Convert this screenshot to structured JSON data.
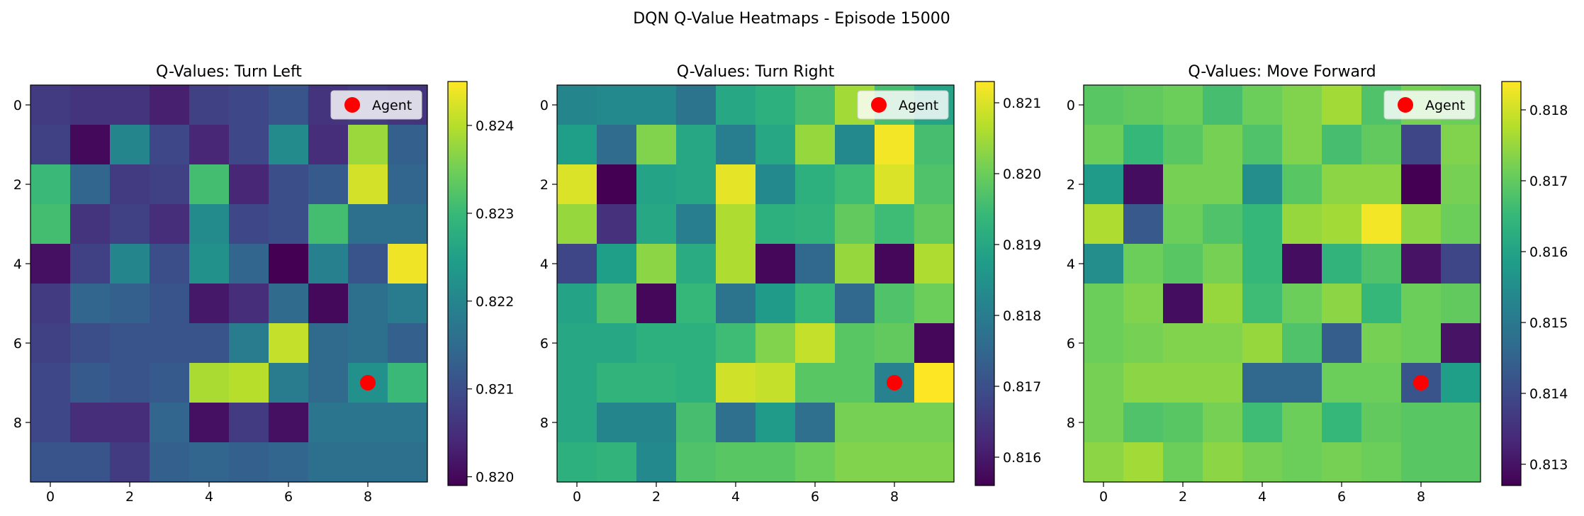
{
  "suptitle": "DQN Q-Value Heatmaps - Episode 15000",
  "colors": {
    "agent_marker": "#ff0000",
    "colormap": "viridis",
    "colormap_stops": [
      "#440154",
      "#482878",
      "#3e4989",
      "#31688e",
      "#26828e",
      "#1f9e89",
      "#35b779",
      "#6ece58",
      "#b5de2b",
      "#fde725"
    ]
  },
  "chart_data": [
    {
      "type": "heatmap",
      "title": "Q-Values: Turn Left",
      "x_ticks": [
        "0",
        "2",
        "4",
        "6",
        "8"
      ],
      "y_ticks": [
        "0",
        "2",
        "4",
        "6",
        "8"
      ],
      "xlim": [
        -0.5,
        9.5
      ],
      "ylim": [
        9.5,
        -0.5
      ],
      "legend": {
        "label": "Agent",
        "placement": "top-right"
      },
      "agent": {
        "x": 8,
        "y": 7
      },
      "colorbar": {
        "min": 0.8199,
        "max": 0.8245,
        "ticks": [
          "0.820",
          "0.821",
          "0.822",
          "0.823",
          "0.824"
        ],
        "tick_values": [
          0.82,
          0.821,
          0.822,
          0.823,
          0.824
        ]
      },
      "values": [
        [
          0.8207,
          0.8206,
          0.8206,
          0.8203,
          0.8208,
          0.8209,
          0.8211,
          0.8206,
          0.8207,
          0.8206
        ],
        [
          0.8208,
          0.82,
          0.822,
          0.8209,
          0.8204,
          0.8209,
          0.8221,
          0.8205,
          0.8238,
          0.8213
        ],
        [
          0.823,
          0.8214,
          0.8207,
          0.8208,
          0.8231,
          0.8204,
          0.821,
          0.8212,
          0.8242,
          0.8214
        ],
        [
          0.8231,
          0.8206,
          0.8208,
          0.8205,
          0.8221,
          0.8209,
          0.821,
          0.8231,
          0.8216,
          0.8216
        ],
        [
          0.8201,
          0.8208,
          0.822,
          0.821,
          0.8222,
          0.8214,
          0.8199,
          0.8219,
          0.8211,
          0.8244
        ],
        [
          0.8207,
          0.8214,
          0.8213,
          0.8211,
          0.8202,
          0.8205,
          0.8215,
          0.82,
          0.8216,
          0.8218
        ],
        [
          0.8208,
          0.821,
          0.8211,
          0.8211,
          0.8211,
          0.8218,
          0.8241,
          0.8215,
          0.8216,
          0.8213
        ],
        [
          0.8209,
          0.8212,
          0.8211,
          0.8212,
          0.8239,
          0.824,
          0.8218,
          0.8215,
          0.8222,
          0.823
        ],
        [
          0.8209,
          0.8205,
          0.8205,
          0.8214,
          0.8201,
          0.8207,
          0.8201,
          0.8217,
          0.8217,
          0.8217
        ],
        [
          0.8211,
          0.8211,
          0.8207,
          0.8213,
          0.8214,
          0.8213,
          0.8214,
          0.8216,
          0.8216,
          0.8216
        ]
      ]
    },
    {
      "type": "heatmap",
      "title": "Q-Values: Turn Right",
      "x_ticks": [
        "0",
        "2",
        "4",
        "6",
        "8"
      ],
      "y_ticks": [
        "0",
        "2",
        "4",
        "6",
        "8"
      ],
      "xlim": [
        -0.5,
        9.5
      ],
      "ylim": [
        9.5,
        -0.5
      ],
      "legend": {
        "label": "Agent",
        "placement": "top-right"
      },
      "agent": {
        "x": 8,
        "y": 7
      },
      "colorbar": {
        "min": 0.8156,
        "max": 0.8213,
        "ticks": [
          "0.816",
          "0.817",
          "0.818",
          "0.819",
          "0.820",
          "0.821"
        ],
        "tick_values": [
          0.816,
          0.817,
          0.818,
          0.819,
          0.82,
          0.821
        ]
      },
      "values": [
        [
          0.8182,
          0.8183,
          0.8183,
          0.8178,
          0.819,
          0.8192,
          0.8196,
          0.8205,
          0.8196,
          0.8189
        ],
        [
          0.8188,
          0.8176,
          0.8202,
          0.819,
          0.818,
          0.819,
          0.8204,
          0.8183,
          0.8212,
          0.8196
        ],
        [
          0.821,
          0.8156,
          0.8189,
          0.819,
          0.8211,
          0.8183,
          0.8192,
          0.8195,
          0.821,
          0.8197
        ],
        [
          0.8204,
          0.8164,
          0.819,
          0.818,
          0.8206,
          0.8192,
          0.8193,
          0.8199,
          0.8195,
          0.8199
        ],
        [
          0.8168,
          0.8188,
          0.8203,
          0.8191,
          0.8206,
          0.8157,
          0.8175,
          0.8204,
          0.8157,
          0.8206
        ],
        [
          0.8189,
          0.8197,
          0.8157,
          0.8194,
          0.8178,
          0.8187,
          0.8194,
          0.8175,
          0.8197,
          0.82
        ],
        [
          0.819,
          0.819,
          0.8192,
          0.8192,
          0.8195,
          0.8202,
          0.8208,
          0.8198,
          0.8199,
          0.8157
        ],
        [
          0.819,
          0.8193,
          0.8193,
          0.8192,
          0.8209,
          0.8208,
          0.8198,
          0.8198,
          0.8181,
          0.8213
        ],
        [
          0.819,
          0.8182,
          0.8182,
          0.8196,
          0.8177,
          0.8187,
          0.8177,
          0.8201,
          0.8201,
          0.8201
        ],
        [
          0.8192,
          0.8193,
          0.8183,
          0.8197,
          0.8198,
          0.8198,
          0.82,
          0.8202,
          0.8202,
          0.8202
        ]
      ]
    },
    {
      "type": "heatmap",
      "title": "Q-Values: Move Forward",
      "x_ticks": [
        "0",
        "2",
        "4",
        "6",
        "8"
      ],
      "y_ticks": [
        "0",
        "2",
        "4",
        "6",
        "8"
      ],
      "xlim": [
        -0.5,
        9.5
      ],
      "ylim": [
        9.5,
        -0.5
      ],
      "legend": {
        "label": "Agent",
        "placement": "top-right"
      },
      "agent": {
        "x": 8,
        "y": 7
      },
      "colorbar": {
        "min": 0.8127,
        "max": 0.8184,
        "ticks": [
          "0.813",
          "0.814",
          "0.815",
          "0.816",
          "0.817",
          "0.818"
        ],
        "tick_values": [
          0.813,
          0.814,
          0.815,
          0.816,
          0.817,
          0.818
        ]
      },
      "values": [
        [
          0.8169,
          0.817,
          0.8171,
          0.8167,
          0.8171,
          0.8173,
          0.8176,
          0.8168,
          0.8172,
          0.8171
        ],
        [
          0.8171,
          0.8165,
          0.8169,
          0.8172,
          0.8168,
          0.8173,
          0.8167,
          0.817,
          0.8139,
          0.8173
        ],
        [
          0.8158,
          0.8129,
          0.8172,
          0.8172,
          0.8155,
          0.8169,
          0.8174,
          0.8174,
          0.8127,
          0.8172
        ],
        [
          0.8177,
          0.8143,
          0.8171,
          0.8168,
          0.8165,
          0.8175,
          0.8176,
          0.8183,
          0.8174,
          0.8171
        ],
        [
          0.8155,
          0.8171,
          0.8169,
          0.8172,
          0.8165,
          0.8129,
          0.8164,
          0.8168,
          0.813,
          0.8139
        ],
        [
          0.8171,
          0.8173,
          0.8129,
          0.8175,
          0.8166,
          0.8171,
          0.8174,
          0.8165,
          0.8171,
          0.817
        ],
        [
          0.8171,
          0.8172,
          0.8173,
          0.8173,
          0.8175,
          0.8168,
          0.8144,
          0.8172,
          0.8171,
          0.813
        ],
        [
          0.8172,
          0.8174,
          0.8174,
          0.8174,
          0.8146,
          0.8146,
          0.8171,
          0.8171,
          0.8142,
          0.8159
        ],
        [
          0.8172,
          0.8168,
          0.8169,
          0.8172,
          0.8166,
          0.8171,
          0.8165,
          0.817,
          0.8169,
          0.8169
        ],
        [
          0.8174,
          0.8176,
          0.8171,
          0.8174,
          0.8172,
          0.8171,
          0.8172,
          0.8171,
          0.8169,
          0.8169
        ]
      ]
    }
  ]
}
